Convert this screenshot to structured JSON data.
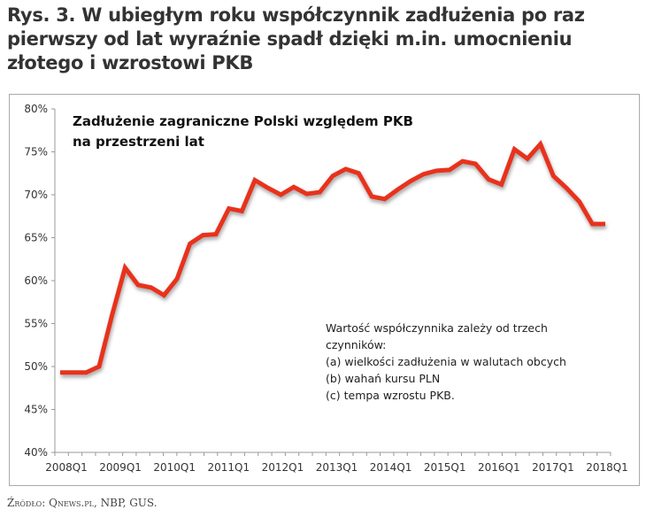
{
  "heading": {
    "lines": [
      "Rys. 3. W ubiegłym roku współczynnik zadłużenia po raz",
      "pierwszy od lat wyraźnie spadł dzięki m.in. umocnieniu",
      "złotego i wzrostowi PKB"
    ]
  },
  "source": "Źródło: Qnews.pl, NBP, GUS.",
  "chart_data": {
    "type": "line",
    "title_lines": [
      "Zadłużenie zagraniczne Polski względem PKB",
      "na przestrzeni lat"
    ],
    "annotation_lines": [
      "Wartość współczynnika zależy od trzech",
      "czynników:",
      "(a) wielkości zadłużenia w walutach obcych",
      "(b) wahań kursu PLN",
      "(c) tempa wzrostu PKB."
    ],
    "xlabel": "",
    "ylabel": "",
    "x_tick_labels": [
      "2008Q1",
      "2009Q1",
      "2010Q1",
      "2011Q1",
      "2012Q1",
      "2013Q1",
      "2014Q1",
      "2015Q1",
      "2016Q1",
      "2017Q1",
      "2018Q1"
    ],
    "y_tick_labels": [
      "40%",
      "45%",
      "50%",
      "55%",
      "60%",
      "65%",
      "70%",
      "75%",
      "80%"
    ],
    "ylim": [
      40,
      80
    ],
    "y_unit": "%",
    "grid": false,
    "series": [
      {
        "name": "Zadłużenie zagraniczne / PKB",
        "color": "#e8321e",
        "values": [
          49.3,
          49.3,
          49.3,
          50.0,
          56.0,
          61.5,
          59.5,
          59.2,
          58.3,
          60.2,
          64.3,
          65.3,
          65.4,
          68.4,
          68.1,
          71.7,
          70.8,
          70.0,
          70.9,
          70.1,
          70.3,
          72.2,
          73.0,
          72.5,
          69.8,
          69.5,
          70.6,
          71.6,
          72.4,
          72.8,
          72.9,
          73.9,
          73.6,
          71.8,
          71.2,
          75.3,
          74.2,
          75.9,
          72.2,
          70.8,
          69.2,
          66.6,
          66.6
        ]
      }
    ]
  }
}
